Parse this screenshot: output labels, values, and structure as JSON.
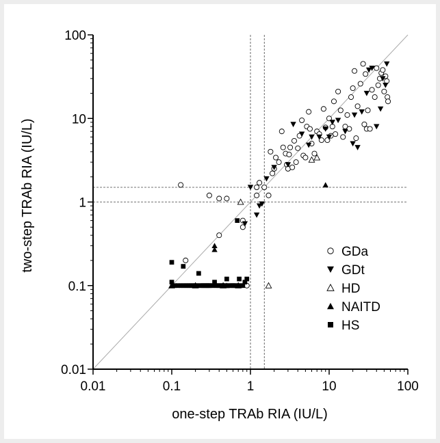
{
  "chart_data": {
    "type": "scatter",
    "xlabel": "one-step TRAb RIA (IU/L)",
    "ylabel": "two-step TRAb RIA (IU/L)",
    "xscale": "log",
    "yscale": "log",
    "xlim": [
      0.01,
      100
    ],
    "ylim": [
      0.01,
      100
    ],
    "x_ticks": [
      0.01,
      0.1,
      1,
      10,
      100
    ],
    "x_tick_labels": [
      "0.01",
      "0.1",
      "1",
      "10",
      "100"
    ],
    "y_ticks": [
      0.01,
      0.1,
      1,
      10,
      100
    ],
    "y_tick_labels": [
      "0.01",
      "0.1",
      "1",
      "10",
      "100"
    ],
    "grid": false,
    "legend_position": "right-middle",
    "reference_lines": [
      {
        "kind": "identity",
        "style": "solid",
        "color": "#aaaaaa"
      },
      {
        "kind": "vertical",
        "x": 1,
        "style": "dashed"
      },
      {
        "kind": "vertical",
        "x": 1.5,
        "style": "dashed"
      },
      {
        "kind": "horizontal",
        "y": 1,
        "style": "dashed"
      },
      {
        "kind": "horizontal",
        "y": 1.5,
        "style": "dashed"
      }
    ],
    "series": [
      {
        "name": "GDa",
        "marker": "circle-open",
        "color": "#000000",
        "points": [
          [
            0.13,
            1.6
          ],
          [
            0.15,
            0.2
          ],
          [
            0.3,
            1.2
          ],
          [
            0.4,
            1.1
          ],
          [
            0.5,
            1.1
          ],
          [
            0.4,
            0.4
          ],
          [
            0.8,
            0.6
          ],
          [
            0.8,
            0.5
          ],
          [
            0.9,
            0.1
          ],
          [
            1.2,
            1.2
          ],
          [
            1.2,
            1.5
          ],
          [
            1.3,
            1.7
          ],
          [
            1.5,
            1.5
          ],
          [
            1.7,
            1.2
          ],
          [
            1.8,
            4
          ],
          [
            1.9,
            2.2
          ],
          [
            2,
            2.5
          ],
          [
            2.1,
            3.4
          ],
          [
            2.3,
            3
          ],
          [
            2.5,
            7
          ],
          [
            2.6,
            4.5
          ],
          [
            2.8,
            3.8
          ],
          [
            2.9,
            2.8
          ],
          [
            3,
            2.5
          ],
          [
            3.1,
            3.7
          ],
          [
            3.2,
            4.5
          ],
          [
            3.4,
            2.6
          ],
          [
            3.6,
            5.4
          ],
          [
            3.8,
            3
          ],
          [
            4,
            4.4
          ],
          [
            4.2,
            6.2
          ],
          [
            4.5,
            9.5
          ],
          [
            4.7,
            3.6
          ],
          [
            5,
            3.4
          ],
          [
            5.2,
            8
          ],
          [
            5.5,
            12
          ],
          [
            5.7,
            7.5
          ],
          [
            6,
            5
          ],
          [
            6.5,
            3.8
          ],
          [
            7,
            7
          ],
          [
            7.5,
            6.5
          ],
          [
            8,
            5.5
          ],
          [
            8.5,
            13
          ],
          [
            9,
            7.8
          ],
          [
            9.5,
            5.5
          ],
          [
            10,
            10
          ],
          [
            10.5,
            6.2
          ],
          [
            11,
            8
          ],
          [
            11.5,
            16
          ],
          [
            12,
            6.5
          ],
          [
            13,
            21
          ],
          [
            14,
            12.5
          ],
          [
            15,
            6
          ],
          [
            16,
            8
          ],
          [
            17,
            11
          ],
          [
            18,
            7.5
          ],
          [
            19,
            18
          ],
          [
            20,
            23
          ],
          [
            21,
            37
          ],
          [
            22,
            5.8
          ],
          [
            23,
            14
          ],
          [
            25,
            26
          ],
          [
            27,
            45
          ],
          [
            28,
            8.5
          ],
          [
            29,
            34
          ],
          [
            30,
            7.5
          ],
          [
            31,
            12.5
          ],
          [
            33,
            7.5
          ],
          [
            35,
            22
          ],
          [
            38,
            18
          ],
          [
            40,
            40
          ],
          [
            42,
            25
          ],
          [
            44,
            30
          ],
          [
            46,
            35
          ],
          [
            48,
            38
          ],
          [
            50,
            21
          ],
          [
            52,
            32
          ],
          [
            54,
            28
          ],
          [
            55,
            18
          ],
          [
            56,
            16
          ]
        ]
      },
      {
        "name": "GDt",
        "marker": "triangle-down-filled",
        "color": "#000000",
        "points": [
          [
            0.85,
            0.55
          ],
          [
            1,
            1.5
          ],
          [
            1.2,
            0.7
          ],
          [
            1.3,
            0.9
          ],
          [
            1.4,
            0.95
          ],
          [
            1.6,
            1.9
          ],
          [
            2,
            2.6
          ],
          [
            3,
            2.8
          ],
          [
            3.5,
            8.5
          ],
          [
            4.5,
            6.5
          ],
          [
            5.5,
            4.8
          ],
          [
            6,
            6
          ],
          [
            7.5,
            6
          ],
          [
            9,
            7.5
          ],
          [
            10,
            6
          ],
          [
            11,
            9
          ],
          [
            13,
            9.5
          ],
          [
            16,
            7
          ],
          [
            20,
            5
          ],
          [
            21,
            11
          ],
          [
            23,
            4.5
          ],
          [
            26,
            12
          ],
          [
            30,
            20
          ],
          [
            32,
            38
          ],
          [
            35,
            40
          ],
          [
            40,
            8
          ],
          [
            45,
            13
          ],
          [
            48,
            30
          ],
          [
            52,
            25
          ],
          [
            54,
            45
          ]
        ]
      },
      {
        "name": "HD",
        "marker": "triangle-up-open",
        "color": "#000000",
        "points": [
          [
            0.1,
            0.1
          ],
          [
            0.2,
            0.1
          ],
          [
            0.45,
            0.1
          ],
          [
            0.7,
            0.1
          ],
          [
            0.75,
            1
          ],
          [
            1.7,
            0.1
          ],
          [
            6,
            3.2
          ],
          [
            7,
            3.4
          ]
        ]
      },
      {
        "name": "NAITD",
        "marker": "triangle-up-filled",
        "color": "#000000",
        "points": [
          [
            0.1,
            0.1
          ],
          [
            0.2,
            0.1
          ],
          [
            0.35,
            0.3
          ],
          [
            0.35,
            0.27
          ],
          [
            0.5,
            0.1
          ],
          [
            9,
            1.6
          ]
        ]
      },
      {
        "name": "HS",
        "marker": "square-filled",
        "color": "#000000",
        "points": [
          [
            0.1,
            0.19
          ],
          [
            0.1,
            0.11
          ],
          [
            0.11,
            0.1
          ],
          [
            0.12,
            0.1
          ],
          [
            0.13,
            0.1
          ],
          [
            0.14,
            0.1
          ],
          [
            0.14,
            0.17
          ],
          [
            0.15,
            0.1
          ],
          [
            0.16,
            0.1
          ],
          [
            0.17,
            0.1
          ],
          [
            0.18,
            0.1
          ],
          [
            0.19,
            0.1
          ],
          [
            0.2,
            0.1
          ],
          [
            0.21,
            0.1
          ],
          [
            0.22,
            0.14
          ],
          [
            0.23,
            0.1
          ],
          [
            0.24,
            0.1
          ],
          [
            0.25,
            0.1
          ],
          [
            0.26,
            0.1
          ],
          [
            0.27,
            0.1
          ],
          [
            0.28,
            0.1
          ],
          [
            0.29,
            0.1
          ],
          [
            0.3,
            0.1
          ],
          [
            0.31,
            0.1
          ],
          [
            0.33,
            0.1
          ],
          [
            0.35,
            0.11
          ],
          [
            0.36,
            0.1
          ],
          [
            0.38,
            0.1
          ],
          [
            0.4,
            0.1
          ],
          [
            0.42,
            0.1
          ],
          [
            0.44,
            0.1
          ],
          [
            0.46,
            0.1
          ],
          [
            0.48,
            0.1
          ],
          [
            0.5,
            0.12
          ],
          [
            0.52,
            0.1
          ],
          [
            0.55,
            0.1
          ],
          [
            0.58,
            0.1
          ],
          [
            0.6,
            0.1
          ],
          [
            0.62,
            0.1
          ],
          [
            0.65,
            0.1
          ],
          [
            0.68,
            0.6
          ],
          [
            0.7,
            0.1
          ],
          [
            0.72,
            0.12
          ],
          [
            0.75,
            0.1
          ],
          [
            0.8,
            0.1
          ],
          [
            0.85,
            0.11
          ],
          [
            0.9,
            0.12
          ]
        ]
      }
    ]
  }
}
